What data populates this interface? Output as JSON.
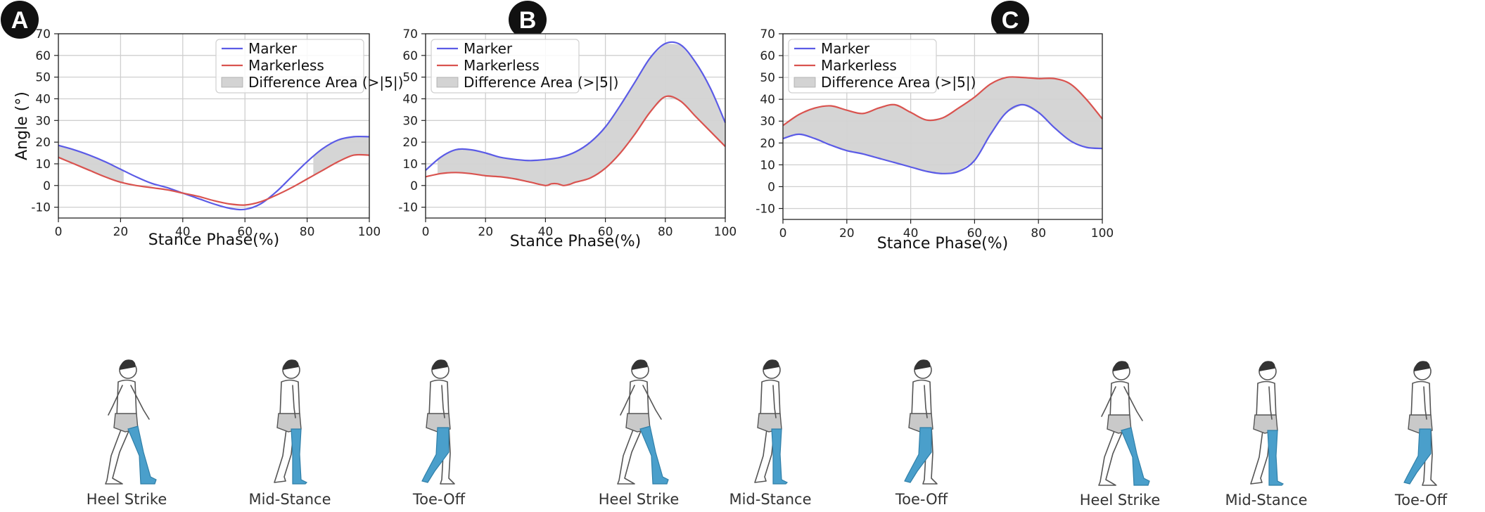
{
  "colors": {
    "marker": "#5b5be6",
    "markerless": "#d9534f",
    "fill": "#d3d3d3",
    "grid": "#cfcfcf",
    "limb": "#4a9fcb",
    "badge": "#111111"
  },
  "legend": [
    "Marker",
    "Markerless",
    "Difference Area (>|5|)"
  ],
  "phase_labels": [
    "Heel Strike",
    "Mid-Stance",
    "Toe-Off"
  ],
  "chart_data": [
    {
      "type": "line",
      "panel_label": "A",
      "title": "",
      "xlabel": "Stance Phase(%)",
      "ylabel": "Angle (°)",
      "xlim": [
        0,
        100
      ],
      "ylim": [
        -15,
        70
      ],
      "xticks": [
        0,
        20,
        40,
        60,
        80,
        100
      ],
      "yticks": [
        -10,
        0,
        10,
        20,
        30,
        40,
        50,
        60,
        70
      ],
      "grid": true,
      "legend_position": "top-right",
      "series": [
        {
          "name": "Marker",
          "x": [
            0,
            5,
            10,
            15,
            20,
            25,
            30,
            35,
            40,
            45,
            50,
            55,
            60,
            65,
            70,
            75,
            80,
            85,
            90,
            95,
            100
          ],
          "y": [
            18.5,
            16.5,
            14,
            11,
            7.5,
            4,
            1,
            -1,
            -3.5,
            -6,
            -8.5,
            -10.5,
            -11,
            -8.5,
            -3,
            4,
            11,
            17,
            21,
            22.5,
            22.5
          ]
        },
        {
          "name": "Markerless",
          "x": [
            0,
            5,
            10,
            15,
            20,
            25,
            30,
            35,
            40,
            45,
            50,
            55,
            60,
            65,
            70,
            75,
            80,
            85,
            90,
            95,
            100
          ],
          "y": [
            13,
            10,
            7,
            4,
            1.5,
            0,
            -1,
            -2,
            -3.5,
            -5,
            -7,
            -8.5,
            -9,
            -7.5,
            -4.5,
            -1,
            3,
            7,
            11,
            14,
            14
          ]
        }
      ],
      "difference_areas": [
        [
          0,
          21
        ],
        [
          82,
          100
        ]
      ]
    },
    {
      "type": "line",
      "panel_label": "B",
      "title": "",
      "xlabel": "Stance Phase(%)",
      "ylabel": "",
      "xlim": [
        0,
        100
      ],
      "ylim": [
        -15,
        70
      ],
      "xticks": [
        0,
        20,
        40,
        60,
        80,
        100
      ],
      "yticks": [
        -10,
        0,
        10,
        20,
        30,
        40,
        50,
        60,
        70
      ],
      "grid": true,
      "legend_position": "top-left",
      "series": [
        {
          "name": "Marker",
          "x": [
            0,
            5,
            10,
            15,
            20,
            25,
            30,
            35,
            40,
            45,
            50,
            55,
            60,
            65,
            70,
            75,
            80,
            85,
            90,
            95,
            100
          ],
          "y": [
            7,
            13,
            16.5,
            16.5,
            15,
            13,
            12,
            11.5,
            12,
            13,
            15.5,
            20,
            27,
            37,
            48,
            59,
            65.5,
            65,
            57,
            45,
            29
          ]
        },
        {
          "name": "Markerless",
          "x": [
            0,
            5,
            10,
            15,
            20,
            25,
            30,
            35,
            40,
            42,
            44,
            46,
            48,
            50,
            55,
            60,
            65,
            70,
            75,
            80,
            85,
            90,
            95,
            100
          ],
          "y": [
            4,
            5.5,
            6,
            5.5,
            4.5,
            4,
            3,
            1.5,
            0,
            0.8,
            0.8,
            0,
            0.5,
            1.5,
            3.5,
            8,
            15,
            24,
            34,
            41,
            39,
            32,
            25,
            18
          ]
        }
      ],
      "difference_areas": [
        [
          4,
          100
        ]
      ]
    },
    {
      "type": "line",
      "panel_label": "C",
      "title": "",
      "xlabel": "Stance Phase(%)",
      "ylabel": "",
      "xlim": [
        0,
        100
      ],
      "ylim": [
        -15,
        70
      ],
      "xticks": [
        0,
        20,
        40,
        60,
        80,
        100
      ],
      "yticks": [
        -10,
        0,
        10,
        20,
        30,
        40,
        50,
        60,
        70
      ],
      "grid": true,
      "legend_position": "top-left",
      "series": [
        {
          "name": "Marker",
          "x": [
            0,
            5,
            10,
            15,
            20,
            25,
            30,
            35,
            40,
            45,
            50,
            55,
            60,
            65,
            70,
            75,
            80,
            85,
            90,
            95,
            100
          ],
          "y": [
            22,
            24,
            22,
            19,
            16.5,
            15,
            13,
            11,
            9,
            7,
            6,
            7,
            12,
            24,
            34,
            37.5,
            34,
            27,
            21,
            18,
            17.5
          ]
        },
        {
          "name": "Markerless",
          "x": [
            0,
            5,
            10,
            15,
            20,
            25,
            30,
            35,
            40,
            45,
            50,
            55,
            60,
            65,
            70,
            75,
            80,
            85,
            90,
            95,
            100
          ],
          "y": [
            28,
            33,
            36,
            37,
            35,
            33.5,
            36,
            37.5,
            34,
            30.5,
            31.5,
            36,
            41,
            47,
            50,
            50,
            49.5,
            49.5,
            47,
            40,
            31
          ]
        }
      ],
      "difference_areas": [
        [
          0,
          100
        ]
      ]
    }
  ]
}
